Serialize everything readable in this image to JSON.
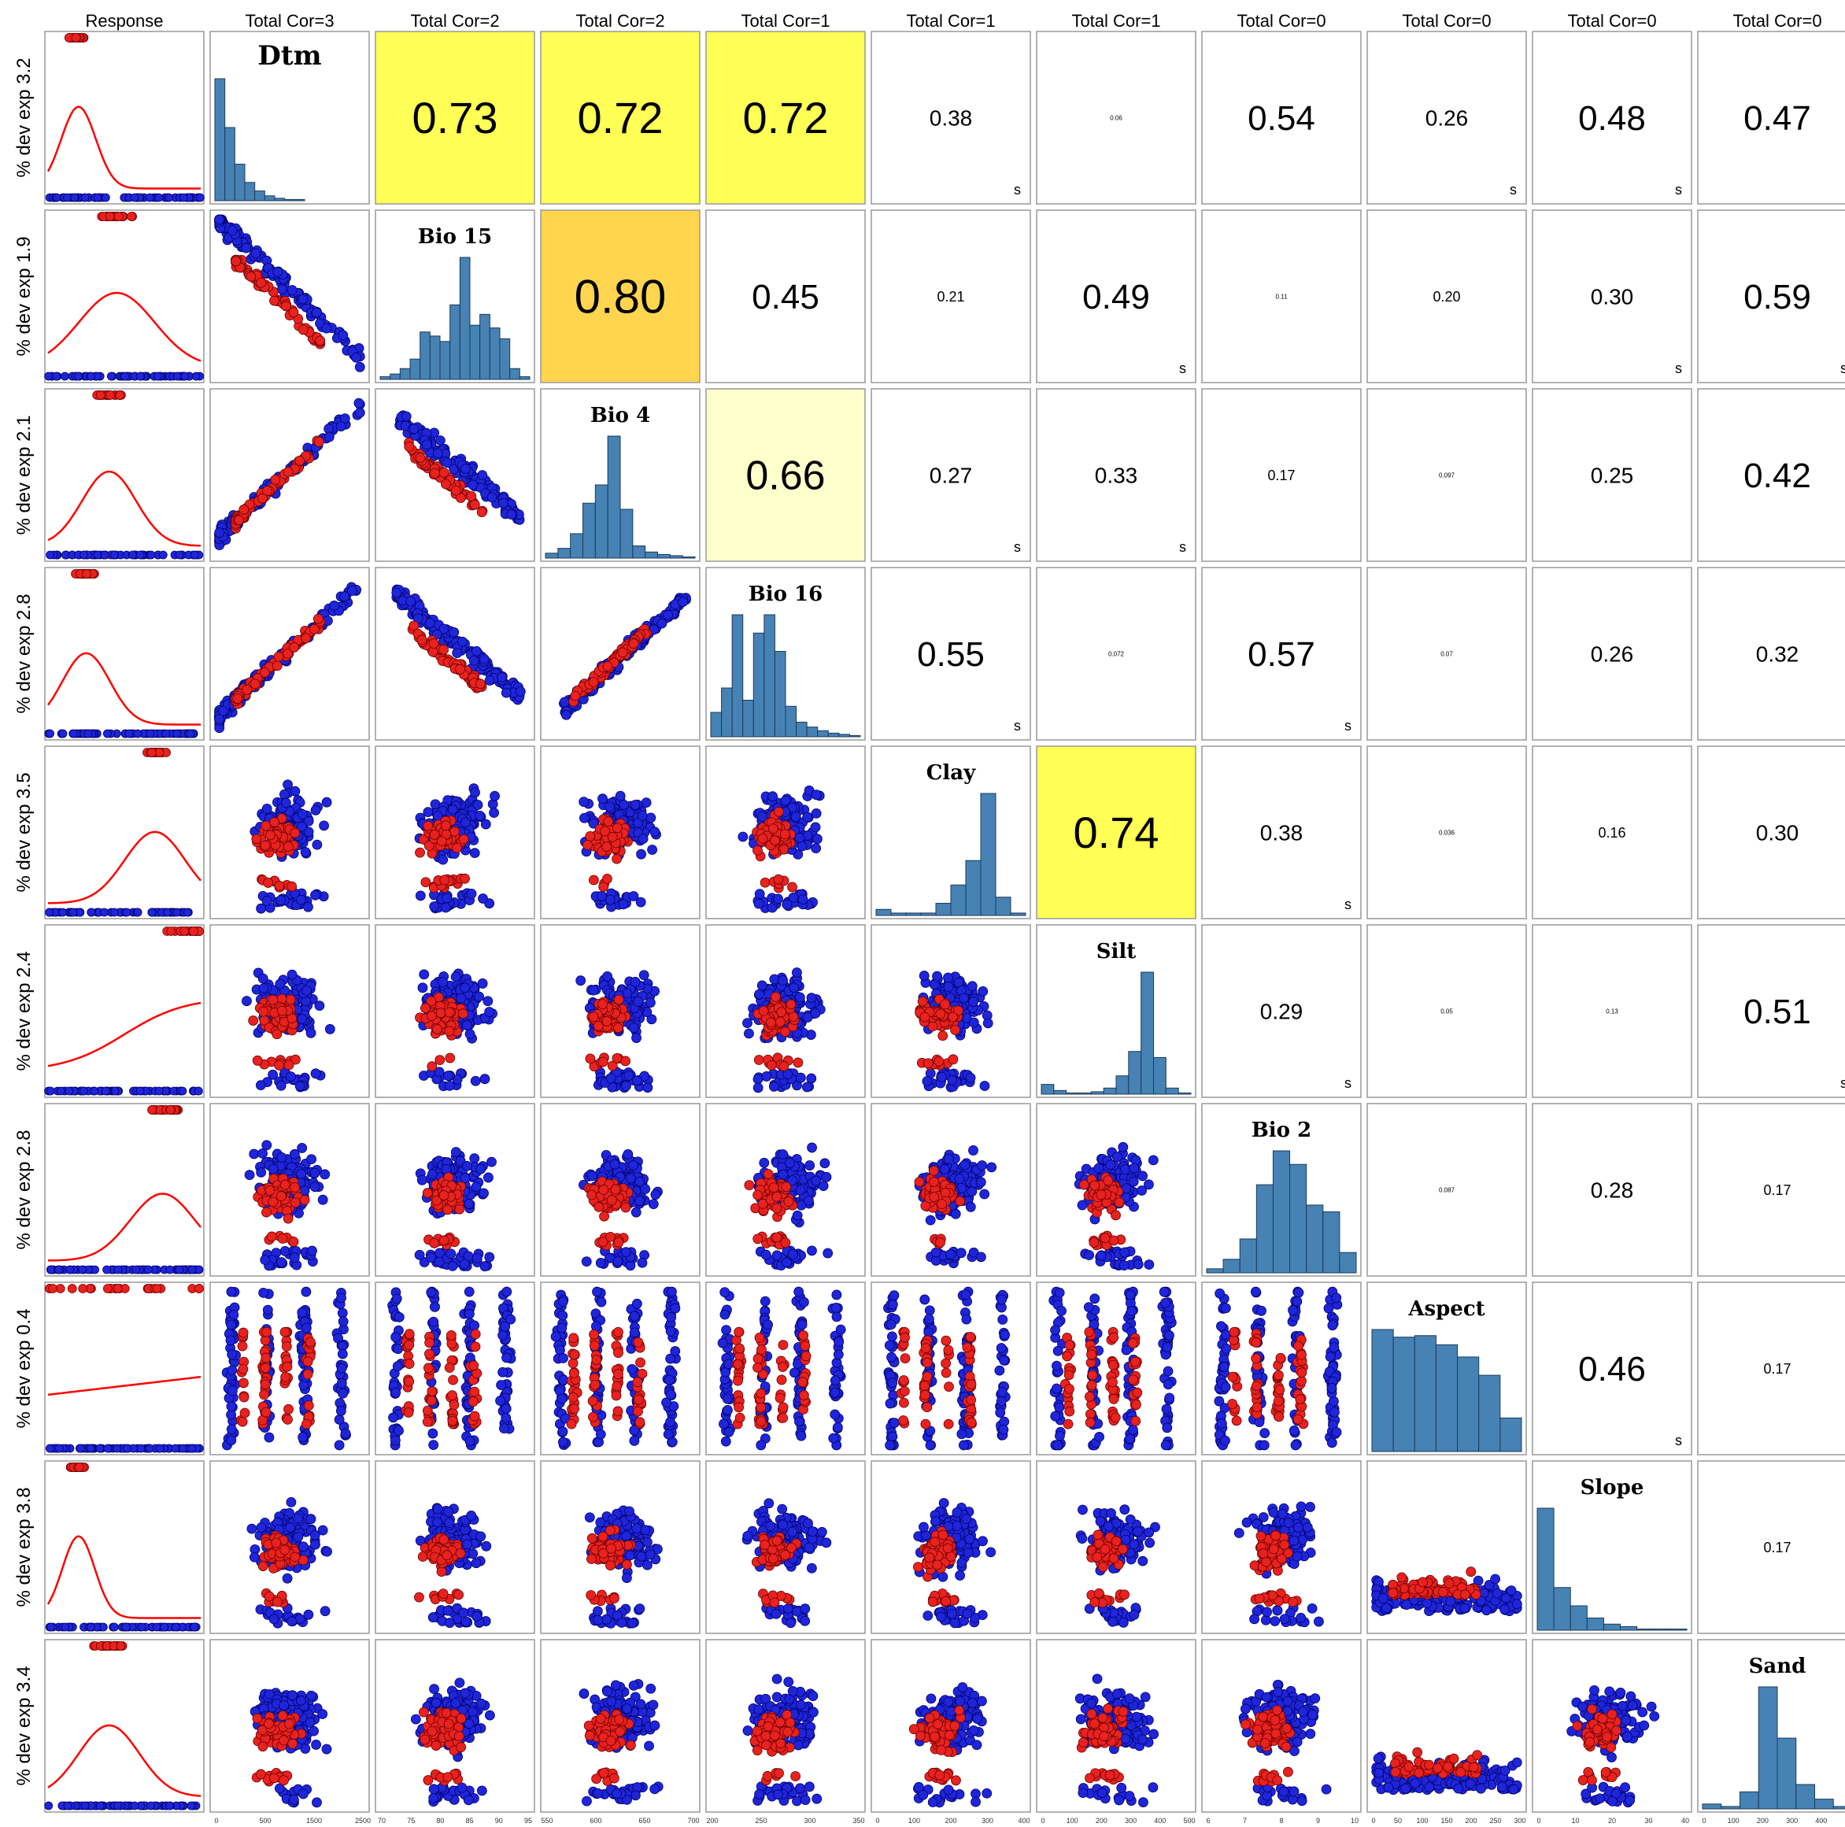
{
  "chart_data": {
    "type": "scatter-matrix",
    "corner_header": "Response",
    "column_headers": [
      "Total Cor=3",
      "Total Cor=2",
      "Total Cor=2",
      "Total Cor=1",
      "Total Cor=1",
      "Total Cor=1",
      "Total Cor=0",
      "Total Cor=0",
      "Total Cor=0",
      "Total Cor=0"
    ],
    "row_labels": [
      "% dev exp 3.2",
      "% dev exp 1.9",
      "% dev exp 2.1",
      "% dev exp 2.8",
      "% dev exp 3.5",
      "% dev exp 2.4",
      "% dev exp 2.8",
      "% dev exp 0.4",
      "% dev exp 3.8",
      "% dev exp 3.4"
    ],
    "variables": [
      "Dtm",
      "Bio 15",
      "Bio 4",
      "Bio 16",
      "Clay",
      "Silt",
      "Bio 2",
      "Aspect",
      "Slope",
      "Sand"
    ],
    "correlations": [
      {
        "r": 0,
        "c": 1,
        "value": "0.73",
        "sig": ""
      },
      {
        "r": 0,
        "c": 2,
        "value": "0.72",
        "sig": ""
      },
      {
        "r": 0,
        "c": 3,
        "value": "0.72",
        "sig": ""
      },
      {
        "r": 0,
        "c": 4,
        "value": "0.38",
        "sig": "s"
      },
      {
        "r": 0,
        "c": 5,
        "value": "0.06",
        "sig": ""
      },
      {
        "r": 0,
        "c": 6,
        "value": "0.54",
        "sig": ""
      },
      {
        "r": 0,
        "c": 7,
        "value": "0.26",
        "sig": "s"
      },
      {
        "r": 0,
        "c": 8,
        "value": "0.48",
        "sig": "s"
      },
      {
        "r": 0,
        "c": 9,
        "value": "0.47",
        "sig": ""
      },
      {
        "r": 1,
        "c": 2,
        "value": "0.80",
        "sig": ""
      },
      {
        "r": 1,
        "c": 3,
        "value": "0.45",
        "sig": ""
      },
      {
        "r": 1,
        "c": 4,
        "value": "0.21",
        "sig": ""
      },
      {
        "r": 1,
        "c": 5,
        "value": "0.49",
        "sig": "s"
      },
      {
        "r": 1,
        "c": 6,
        "value": "0.11",
        "sig": ""
      },
      {
        "r": 1,
        "c": 7,
        "value": "0.20",
        "sig": ""
      },
      {
        "r": 1,
        "c": 8,
        "value": "0.30",
        "sig": "s"
      },
      {
        "r": 1,
        "c": 9,
        "value": "0.59",
        "sig": "s"
      },
      {
        "r": 2,
        "c": 3,
        "value": "0.66",
        "sig": ""
      },
      {
        "r": 2,
        "c": 4,
        "value": "0.27",
        "sig": "s"
      },
      {
        "r": 2,
        "c": 5,
        "value": "0.33",
        "sig": "s"
      },
      {
        "r": 2,
        "c": 6,
        "value": "0.17",
        "sig": ""
      },
      {
        "r": 2,
        "c": 7,
        "value": "0.097",
        "sig": ""
      },
      {
        "r": 2,
        "c": 8,
        "value": "0.25",
        "sig": ""
      },
      {
        "r": 2,
        "c": 9,
        "value": "0.42",
        "sig": ""
      },
      {
        "r": 3,
        "c": 4,
        "value": "0.55",
        "sig": "s"
      },
      {
        "r": 3,
        "c": 5,
        "value": "0.072",
        "sig": ""
      },
      {
        "r": 3,
        "c": 6,
        "value": "0.57",
        "sig": "s"
      },
      {
        "r": 3,
        "c": 7,
        "value": "0.07",
        "sig": ""
      },
      {
        "r": 3,
        "c": 8,
        "value": "0.26",
        "sig": ""
      },
      {
        "r": 3,
        "c": 9,
        "value": "0.32",
        "sig": ""
      },
      {
        "r": 4,
        "c": 5,
        "value": "0.74",
        "sig": ""
      },
      {
        "r": 4,
        "c": 6,
        "value": "0.38",
        "sig": "s"
      },
      {
        "r": 4,
        "c": 7,
        "value": "0.036",
        "sig": ""
      },
      {
        "r": 4,
        "c": 8,
        "value": "0.16",
        "sig": ""
      },
      {
        "r": 4,
        "c": 9,
        "value": "0.30",
        "sig": ""
      },
      {
        "r": 5,
        "c": 6,
        "value": "0.29",
        "sig": "s"
      },
      {
        "r": 5,
        "c": 7,
        "value": "0.05",
        "sig": ""
      },
      {
        "r": 5,
        "c": 8,
        "value": "0.13",
        "sig": ""
      },
      {
        "r": 5,
        "c": 9,
        "value": "0.51",
        "sig": "s"
      },
      {
        "r": 6,
        "c": 7,
        "value": "0.087",
        "sig": ""
      },
      {
        "r": 6,
        "c": 8,
        "value": "0.28",
        "sig": ""
      },
      {
        "r": 6,
        "c": 9,
        "value": "0.17",
        "sig": ""
      },
      {
        "r": 7,
        "c": 8,
        "value": "0.46",
        "sig": "s"
      },
      {
        "r": 7,
        "c": 9,
        "value": "0.17",
        "sig": ""
      },
      {
        "r": 8,
        "c": 9,
        "value": "0.17",
        "sig": ""
      }
    ],
    "corr_colors": {
      "0.80": "#ffd54f",
      "0.74": "#ffff55",
      "0.73": "#ffff55",
      "0.72": "#ffff55",
      "0.66": "#ffffcc"
    },
    "histograms": [
      [
        100,
        60,
        30,
        15,
        8,
        4,
        2,
        1,
        1,
        0,
        0,
        0,
        0,
        0,
        0
      ],
      [
        2,
        4,
        8,
        15,
        35,
        32,
        28,
        55,
        90,
        40,
        48,
        38,
        30,
        8,
        2
      ],
      [
        4,
        8,
        20,
        45,
        60,
        100,
        40,
        10,
        5,
        3,
        2,
        1
      ],
      [
        20,
        40,
        100,
        30,
        85,
        100,
        70,
        25,
        12,
        8,
        5,
        3,
        2,
        1
      ],
      [
        5,
        2,
        2,
        2,
        10,
        25,
        45,
        100,
        15,
        2
      ],
      [
        8,
        3,
        1,
        1,
        2,
        5,
        15,
        35,
        100,
        30,
        5,
        1
      ],
      [
        3,
        10,
        25,
        65,
        90,
        80,
        50,
        45,
        15
      ],
      [
        80,
        75,
        76,
        70,
        62,
        50,
        22
      ],
      [
        100,
        35,
        20,
        10,
        5,
        3,
        1,
        1,
        1
      ],
      [
        4,
        2,
        14,
        100,
        58,
        20,
        8,
        2
      ]
    ],
    "axis_ticks": [
      [
        "0",
        "500",
        "1500",
        "2500"
      ],
      [
        "70",
        "75",
        "80",
        "85",
        "90",
        "95"
      ],
      [
        "550",
        "600",
        "650",
        "700"
      ],
      [
        "200",
        "250",
        "300",
        "350"
      ],
      [
        "0",
        "100",
        "200",
        "300",
        "400"
      ],
      [
        "0",
        "100",
        "200",
        "300",
        "400",
        "500"
      ],
      [
        "6",
        "7",
        "8",
        "9",
        "10"
      ],
      [
        "0",
        "50",
        "100",
        "150",
        "200",
        "250",
        "300"
      ],
      [
        "0",
        "10",
        "20",
        "30",
        "40"
      ],
      [
        "0",
        "100",
        "200",
        "300",
        "400",
        "500"
      ]
    ],
    "series_colors": {
      "presence": "#e8221f",
      "absence": "#1f25d8",
      "density": "#ff0000",
      "histogram": "#4682b4"
    }
  }
}
